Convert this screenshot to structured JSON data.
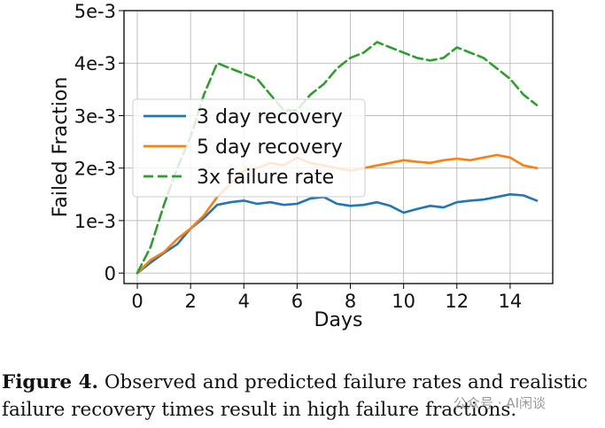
{
  "chart_data": {
    "type": "line",
    "xlabel": "Days",
    "ylabel": "Failed Fraction",
    "xlim": [
      -0.5,
      15.6
    ],
    "ylim": [
      -0.0002,
      0.005
    ],
    "xticks": [
      0,
      2,
      4,
      6,
      8,
      10,
      12,
      14
    ],
    "xtick_labels": [
      "0",
      "2",
      "4",
      "6",
      "8",
      "10",
      "12",
      "14"
    ],
    "yticks": [
      0,
      0.001,
      0.002,
      0.003,
      0.004,
      0.005
    ],
    "ytick_labels": [
      "0",
      "1e-3",
      "2e-3",
      "3e-3",
      "4e-3",
      "5e-3"
    ],
    "grid": true,
    "legend_position": "upper-left",
    "series": [
      {
        "name": "3 day recovery",
        "color": "#1f77b4",
        "style": "solid",
        "x": [
          0,
          0.5,
          1,
          1.5,
          2,
          2.5,
          3,
          3.5,
          4,
          4.5,
          5,
          5.5,
          6,
          6.5,
          7,
          7.5,
          8,
          8.5,
          9,
          9.5,
          10,
          10.5,
          11,
          11.5,
          12,
          12.5,
          13,
          13.5,
          14,
          14.5,
          15
        ],
        "y": [
          0,
          0.0002,
          0.00038,
          0.00055,
          0.00085,
          0.00105,
          0.0013,
          0.00135,
          0.00138,
          0.00132,
          0.00135,
          0.0013,
          0.00132,
          0.00142,
          0.00145,
          0.00132,
          0.00128,
          0.0013,
          0.00135,
          0.00128,
          0.00115,
          0.00122,
          0.00128,
          0.00125,
          0.00135,
          0.00138,
          0.0014,
          0.00145,
          0.0015,
          0.00148,
          0.00138
        ]
      },
      {
        "name": "5 day recovery",
        "color": "#ff7f0e",
        "style": "solid",
        "x": [
          0,
          0.5,
          1,
          1.5,
          2,
          2.5,
          3,
          3.5,
          4,
          4.5,
          5,
          5.5,
          6,
          6.5,
          7,
          7.5,
          8,
          8.5,
          9,
          9.5,
          10,
          10.5,
          11,
          11.5,
          12,
          12.5,
          13,
          13.5,
          14,
          14.5,
          15
        ],
        "y": [
          0,
          0.00025,
          0.0004,
          0.00065,
          0.00085,
          0.0011,
          0.00145,
          0.0017,
          0.00195,
          0.002,
          0.0021,
          0.00205,
          0.0022,
          0.0021,
          0.00205,
          0.002,
          0.00195,
          0.002,
          0.00205,
          0.0021,
          0.00215,
          0.00212,
          0.0021,
          0.00215,
          0.00218,
          0.00215,
          0.0022,
          0.00225,
          0.0022,
          0.00205,
          0.002
        ]
      },
      {
        "name": "3x failure rate",
        "color": "#2ca02c",
        "style": "dashed",
        "x": [
          0,
          0.5,
          1,
          1.5,
          2,
          2.5,
          3,
          3.5,
          4,
          4.5,
          5,
          5.5,
          6,
          6.5,
          7,
          7.5,
          8,
          8.5,
          9,
          9.5,
          10,
          10.5,
          11,
          11.5,
          12,
          12.5,
          13,
          13.5,
          14,
          14.5,
          15
        ],
        "y": [
          0,
          0.0005,
          0.0013,
          0.002,
          0.0026,
          0.0034,
          0.004,
          0.0039,
          0.0038,
          0.0037,
          0.0034,
          0.0031,
          0.0031,
          0.0034,
          0.0036,
          0.0039,
          0.0041,
          0.0042,
          0.0044,
          0.0043,
          0.0042,
          0.0041,
          0.00405,
          0.0041,
          0.0043,
          0.0042,
          0.0041,
          0.0039,
          0.0037,
          0.0034,
          0.0032
        ]
      }
    ]
  },
  "caption": {
    "label": "Figure 4.",
    "text": "Observed and predicted failure rates and realistic failure recovery times result in high failure fractions."
  },
  "watermark": "公众号 · AI闲谈"
}
